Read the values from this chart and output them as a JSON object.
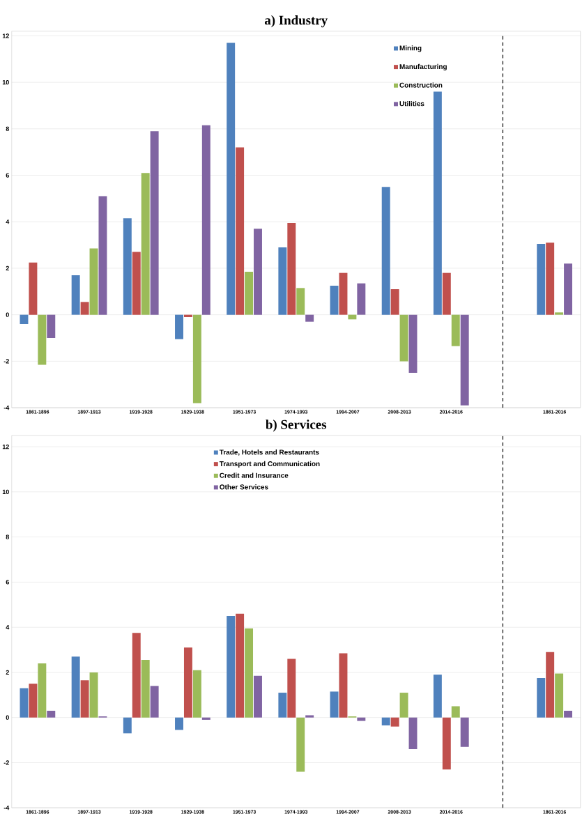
{
  "chart_data": [
    {
      "type": "bar",
      "title": "a)  Industry",
      "categories": [
        "1861-1896",
        "1897-1913",
        "1919-1928",
        "1929-1938",
        "1951-1973",
        "1974-1993",
        "1994-2007",
        "2008-2013",
        "2014-2016",
        null,
        "1861-2016"
      ],
      "series": [
        {
          "name": "Mining",
          "color": "#4f81bd",
          "values": [
            -0.4,
            1.7,
            4.15,
            -1.05,
            11.7,
            2.9,
            1.25,
            5.5,
            9.6,
            null,
            3.05
          ]
        },
        {
          "name": "Manufacturing",
          "color": "#c0504d",
          "values": [
            2.25,
            0.55,
            2.7,
            -0.1,
            7.2,
            3.95,
            1.8,
            1.1,
            1.8,
            null,
            3.1
          ]
        },
        {
          "name": "Construction",
          "color": "#9bbb59",
          "values": [
            -2.15,
            2.85,
            6.1,
            -3.8,
            1.85,
            1.15,
            -0.2,
            -2.0,
            -1.35,
            null,
            0.1
          ]
        },
        {
          "name": "Utilities",
          "color": "#8064a2",
          "values": [
            -1.0,
            5.1,
            7.9,
            8.15,
            3.7,
            -0.3,
            1.35,
            -2.5,
            -3.9,
            null,
            2.2
          ]
        }
      ],
      "ylim": [
        -4,
        12.2
      ],
      "yticks": [
        -4,
        -2,
        0,
        2,
        4,
        6,
        8,
        10,
        12
      ],
      "grid": "y",
      "legend": "top right"
    },
    {
      "type": "bar",
      "title": "b)  Services",
      "categories": [
        "1861-1896",
        "1897-1913",
        "1919-1928",
        "1929-1938",
        "1951-1973",
        "1974-1993",
        "1994-2007",
        "2008-2013",
        "2014-2016",
        null,
        "1861-2016"
      ],
      "series": [
        {
          "name": "Trade, Hotels and Restaurants",
          "color": "#4f81bd",
          "values": [
            1.3,
            2.7,
            -0.7,
            -0.55,
            4.5,
            1.1,
            1.15,
            -0.35,
            1.9,
            null,
            1.75
          ]
        },
        {
          "name": "Transport and Communication",
          "color": "#c0504d",
          "values": [
            1.5,
            1.65,
            3.75,
            3.1,
            4.6,
            2.6,
            2.85,
            -0.4,
            -2.3,
            null,
            2.9
          ]
        },
        {
          "name": "Credit and Insurance",
          "color": "#9bbb59",
          "values": [
            2.4,
            2.0,
            2.55,
            2.1,
            3.95,
            -2.4,
            0.05,
            1.1,
            0.5,
            null,
            1.95
          ]
        },
        {
          "name": "Other Services",
          "color": "#8064a2",
          "values": [
            0.3,
            0.05,
            1.4,
            -0.1,
            1.85,
            0.1,
            -0.15,
            -1.4,
            -1.3,
            null,
            0.3
          ]
        }
      ],
      "ylim": [
        -4,
        12.5
      ],
      "yticks": [
        -4,
        -2,
        0,
        2,
        4,
        6,
        8,
        10,
        12
      ],
      "grid": "y",
      "legend": "top"
    }
  ]
}
